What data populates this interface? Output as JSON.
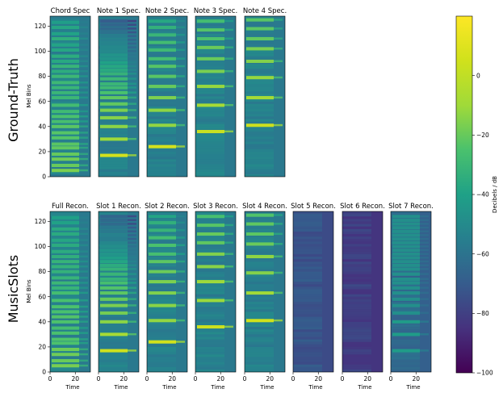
{
  "chart_data": {
    "type": "heatmap",
    "row_labels": [
      "Ground-Truth",
      "MusicSlots"
    ],
    "rows": [
      {
        "name": "Ground-Truth",
        "panels": [
          {
            "title": "Chord Spec",
            "kind": "chord",
            "harmonics": [
              5,
              9,
              14,
              18,
              23,
              26,
              31,
              35,
              40,
              44,
              48,
              52,
              57,
              63,
              67,
              71,
              75,
              80,
              84,
              88,
              92,
              96,
              101,
              105,
              110,
              114,
              119,
              123
            ]
          },
          {
            "title": "Note 1 Spec.",
            "kind": "note",
            "harmonics": [
              17,
              30,
              40,
              47,
              53,
              58,
              63,
              67,
              71,
              74,
              78,
              82,
              85,
              88,
              91,
              94,
              97,
              100,
              103,
              106,
              109,
              112,
              115,
              118,
              121,
              124
            ]
          },
          {
            "title": "Note 2 Spec.",
            "kind": "note",
            "harmonics": [
              24,
              41,
              53,
              63,
              72,
              80,
              88,
              94,
              101,
              107,
              113,
              119,
              124
            ]
          },
          {
            "title": "Note 3 Spec.",
            "kind": "note",
            "harmonics": [
              36,
              57,
              72,
              84,
              94,
              103,
              110,
              117,
              124
            ]
          },
          {
            "title": "Note 4 Spec.",
            "kind": "note",
            "harmonics": [
              41,
              63,
              79,
              92,
              102,
              110,
              118,
              125
            ]
          }
        ]
      },
      {
        "name": "MusicSlots",
        "panels": [
          {
            "title": "Full Recon.",
            "kind": "chord",
            "harmonics": [
              5,
              9,
              14,
              18,
              23,
              26,
              31,
              35,
              40,
              44,
              48,
              52,
              57,
              63,
              67,
              71,
              75,
              80,
              84,
              88,
              92,
              96,
              101,
              105,
              110,
              114,
              119,
              123
            ]
          },
          {
            "title": "Slot 1 Recon.",
            "kind": "note",
            "harmonics": [
              17,
              30,
              40,
              47,
              53,
              58,
              63,
              67,
              71,
              74,
              78,
              82,
              85,
              88,
              91,
              94,
              97,
              100,
              103,
              106,
              109,
              112,
              115,
              118,
              121,
              124
            ]
          },
          {
            "title": "Slot 2 Recon.",
            "kind": "note",
            "harmonics": [
              24,
              41,
              53,
              63,
              72,
              80,
              88,
              94,
              101,
              107,
              113,
              119,
              124
            ]
          },
          {
            "title": "Slot 3 Recon.",
            "kind": "note",
            "harmonics": [
              36,
              57,
              72,
              84,
              94,
              103,
              110,
              117,
              124
            ]
          },
          {
            "title": "Slot 4 Recon.",
            "kind": "note",
            "harmonics": [
              41,
              63,
              79,
              92,
              102,
              110,
              118,
              125
            ]
          },
          {
            "title": "Slot 5 Recon.",
            "kind": "noise",
            "harmonics": []
          },
          {
            "title": "Slot 6 Recon.",
            "kind": "noise_dark",
            "harmonics": []
          },
          {
            "title": "Slot 7 Recon.",
            "kind": "faint",
            "harmonics": [
              17,
              30,
              40,
              47,
              53,
              58,
              63,
              67,
              71,
              74,
              78,
              82,
              85,
              88,
              91,
              94,
              97,
              100,
              103,
              106,
              109,
              112,
              115,
              118,
              121,
              124
            ]
          }
        ]
      }
    ],
    "x_axis": {
      "label": "Time",
      "range": [
        0,
        32
      ],
      "ticks": [
        0,
        20
      ]
    },
    "y_axis": {
      "label": "Mel Bins",
      "range": [
        0,
        128
      ],
      "ticks": [
        0,
        20,
        40,
        60,
        80,
        100,
        120
      ]
    },
    "colorbar": {
      "label": "Decibels / dB",
      "range": [
        -100,
        20
      ],
      "ticks": [
        0,
        -20,
        -40,
        -60,
        -80,
        -100
      ],
      "tick_labels": [
        "0",
        "−20",
        "−40",
        "−60",
        "−80",
        "−100"
      ],
      "colormap": "viridis"
    }
  }
}
